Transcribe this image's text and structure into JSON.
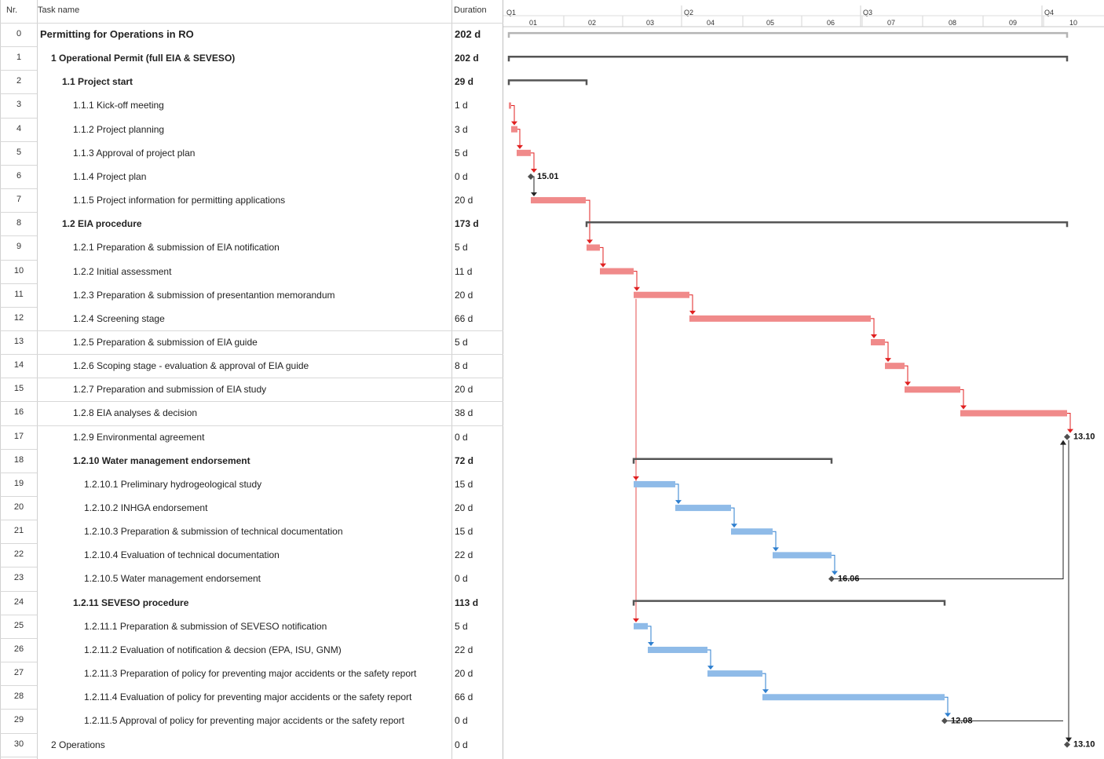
{
  "table": {
    "headers": {
      "nr": "Nr.",
      "name": "Task name",
      "duration": "Duration"
    },
    "rows": [
      {
        "nr": "0",
        "name": "Permitting for Operations in RO",
        "duration": "202 d",
        "level": 0,
        "bold": true
      },
      {
        "nr": "1",
        "name": "1 Operational Permit (full EIA & SEVESO)",
        "duration": "202 d",
        "level": 1,
        "bold": true
      },
      {
        "nr": "2",
        "name": "1.1 Project start",
        "duration": "29 d",
        "level": 2,
        "bold": true
      },
      {
        "nr": "3",
        "name": "1.1.1 Kick-off meeting",
        "duration": "1 d",
        "level": 3,
        "bold": false
      },
      {
        "nr": "4",
        "name": "1.1.2 Project planning",
        "duration": "3 d",
        "level": 3,
        "bold": false
      },
      {
        "nr": "5",
        "name": "1.1.3 Approval of project plan",
        "duration": "5 d",
        "level": 3,
        "bold": false
      },
      {
        "nr": "6",
        "name": "1.1.4 Project plan",
        "duration": "0 d",
        "level": 3,
        "bold": false
      },
      {
        "nr": "7",
        "name": "1.1.5 Project information for permitting applications",
        "duration": "20 d",
        "level": 3,
        "bold": false
      },
      {
        "nr": "8",
        "name": "1.2 EIA procedure",
        "duration": "173 d",
        "level": 2,
        "bold": true
      },
      {
        "nr": "9",
        "name": "1.2.1 Preparation & submission of EIA notification",
        "duration": "5 d",
        "level": 3,
        "bold": false
      },
      {
        "nr": "10",
        "name": "1.2.2 Initial assessment",
        "duration": "11 d",
        "level": 3,
        "bold": false
      },
      {
        "nr": "11",
        "name": "1.2.3 Preparation & submission of presentantion memorandum",
        "duration": "20 d",
        "level": 3,
        "bold": false
      },
      {
        "nr": "12",
        "name": "1.2.4 Screening stage",
        "duration": "66 d",
        "level": 3,
        "bold": false
      },
      {
        "nr": "13",
        "name": "1.2.5 Preparation & submission of EIA guide",
        "duration": "5 d",
        "level": 3,
        "bold": false
      },
      {
        "nr": "14",
        "name": "1.2.6 Scoping stage - evaluation & approval of EIA guide",
        "duration": "8 d",
        "level": 3,
        "bold": false
      },
      {
        "nr": "15",
        "name": "1.2.7 Preparation and submission of EIA study",
        "duration": "20 d",
        "level": 3,
        "bold": false
      },
      {
        "nr": "16",
        "name": "1.2.8 EIA analyses & decision",
        "duration": "38 d",
        "level": 3,
        "bold": false
      },
      {
        "nr": "17",
        "name": "1.2.9 Environmental agreement",
        "duration": "0 d",
        "level": 3,
        "bold": false
      },
      {
        "nr": "18",
        "name": "1.2.10 Water management endorsement",
        "duration": "72 d",
        "level": 3,
        "bold": true
      },
      {
        "nr": "19",
        "name": "1.2.10.1 Preliminary hydrogeological study",
        "duration": "15 d",
        "level": 4,
        "bold": false
      },
      {
        "nr": "20",
        "name": "1.2.10.2 INHGA endorsement",
        "duration": "20 d",
        "level": 4,
        "bold": false
      },
      {
        "nr": "21",
        "name": "1.2.10.3 Preparation & submission of technical documentation",
        "duration": "15 d",
        "level": 4,
        "bold": false
      },
      {
        "nr": "22",
        "name": "1.2.10.4 Evaluation of technical documentation",
        "duration": "22 d",
        "level": 4,
        "bold": false
      },
      {
        "nr": "23",
        "name": "1.2.10.5 Water management endorsement",
        "duration": "0 d",
        "level": 4,
        "bold": false
      },
      {
        "nr": "24",
        "name": "1.2.11 SEVESO procedure",
        "duration": "113 d",
        "level": 3,
        "bold": true
      },
      {
        "nr": "25",
        "name": "1.2.11.1 Preparation & submission of SEVESO notification",
        "duration": "5 d",
        "level": 4,
        "bold": false
      },
      {
        "nr": "26",
        "name": "1.2.11.2 Evaluation of notification & decsion (EPA, ISU, GNM)",
        "duration": "22 d",
        "level": 4,
        "bold": false
      },
      {
        "nr": "27",
        "name": "1.2.11.3 Preparation of policy for preventing major accidents or the safety report",
        "duration": "20 d",
        "level": 4,
        "bold": false
      },
      {
        "nr": "28",
        "name": "1.2.11.4 Evaluation of policy for preventing major accidents or the safety report",
        "duration": "66 d",
        "level": 4,
        "bold": false
      },
      {
        "nr": "29",
        "name": "1.2.11.5 Approval of policy for preventing major accidents or the safety report",
        "duration": "0 d",
        "level": 4,
        "bold": false
      },
      {
        "nr": "30",
        "name": "2 Operations",
        "duration": "0 d",
        "level": 1,
        "bold": false
      }
    ]
  },
  "timeline": {
    "quarters": [
      "Q1",
      "Q2",
      "Q3",
      "Q4"
    ],
    "months": [
      "01",
      "02",
      "03",
      "04",
      "05",
      "06",
      "07",
      "08",
      "09",
      "10"
    ]
  },
  "gantt": {
    "colors": {
      "summary_grey": "#b4b4b4",
      "summary_dark": "#555555",
      "task_red": "#f08a8a",
      "task_blue": "#8fbbe8",
      "link_red": "#e02020",
      "link_blue": "#2e7fcf",
      "milestone": "#505050"
    },
    "milestone_labels": {
      "m6": "15.01",
      "m17": "13.10",
      "m23": "16.06",
      "m29": "12.08",
      "m30": "13.10"
    },
    "bars": [
      {
        "row": 0,
        "kind": "summary-light"
      },
      {
        "row": 1,
        "kind": "summary"
      },
      {
        "row": 2,
        "kind": "summary"
      },
      {
        "row": 3,
        "kind": "task-red"
      },
      {
        "row": 4,
        "kind": "task-red"
      },
      {
        "row": 5,
        "kind": "task-red"
      },
      {
        "row": 6,
        "kind": "milestone",
        "label": "15.01"
      },
      {
        "row": 7,
        "kind": "task-red"
      },
      {
        "row": 8,
        "kind": "summary"
      },
      {
        "row": 9,
        "kind": "task-red"
      },
      {
        "row": 10,
        "kind": "task-red"
      },
      {
        "row": 11,
        "kind": "task-red"
      },
      {
        "row": 12,
        "kind": "task-red"
      },
      {
        "row": 13,
        "kind": "task-red"
      },
      {
        "row": 14,
        "kind": "task-red"
      },
      {
        "row": 15,
        "kind": "task-red"
      },
      {
        "row": 16,
        "kind": "task-red"
      },
      {
        "row": 17,
        "kind": "milestone",
        "label": "13.10"
      },
      {
        "row": 18,
        "kind": "summary"
      },
      {
        "row": 19,
        "kind": "task-blue"
      },
      {
        "row": 20,
        "kind": "task-blue"
      },
      {
        "row": 21,
        "kind": "task-blue"
      },
      {
        "row": 22,
        "kind": "task-blue"
      },
      {
        "row": 23,
        "kind": "milestone",
        "label": "16.06"
      },
      {
        "row": 24,
        "kind": "summary"
      },
      {
        "row": 25,
        "kind": "task-blue"
      },
      {
        "row": 26,
        "kind": "task-blue"
      },
      {
        "row": 27,
        "kind": "task-blue"
      },
      {
        "row": 28,
        "kind": "task-blue"
      },
      {
        "row": 29,
        "kind": "milestone",
        "label": "12.08"
      },
      {
        "row": 30,
        "kind": "milestone",
        "label": "13.10"
      }
    ]
  }
}
